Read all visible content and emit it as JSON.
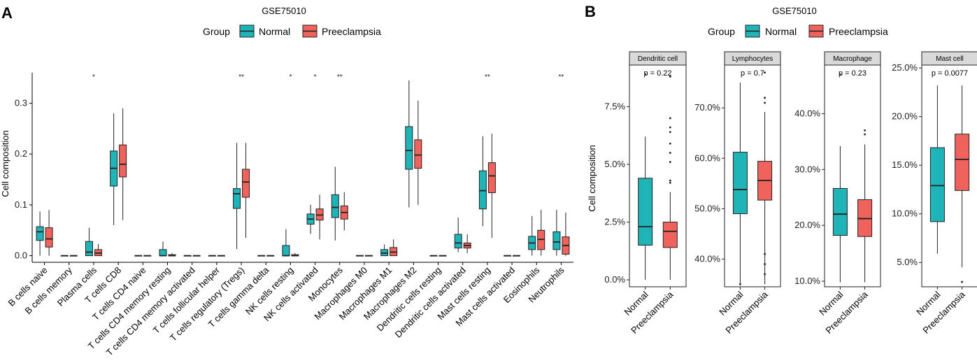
{
  "panel_a": {
    "letter": "A",
    "chart_data": {
      "type": "boxplot",
      "title": "GSE75010",
      "legend": {
        "title": "Group",
        "entries": [
          "Normal",
          "Preeclampsia"
        ]
      },
      "ylabel": "Cell composition",
      "ylim": [
        -0.013,
        0.36
      ],
      "yticks": [
        0.0,
        0.1,
        0.2,
        0.3
      ],
      "ytick_labels": [
        "0.0",
        "0.1",
        "0.2",
        "0.3"
      ],
      "categories": [
        "B cells naive",
        "B cells memory",
        "Plasma cells",
        "T cells CD8",
        "T cells CD4 naive",
        "T cells CD4 memory resting",
        "T cells CD4 memory activated",
        "T cells follicular helper",
        "T cells regulatory (Tregs)",
        "T cells gamma delta",
        "NK cells resting",
        "NK cells activated",
        "Monocytes",
        "Macrophages M0",
        "Macrophages M1",
        "Macrophages M2",
        "Dendritic cells resting",
        "Dendritic cells activated",
        "Mast cells resting",
        "Mast cells activated",
        "Eosinophils",
        "Neutrophils"
      ],
      "significance": [
        "",
        "",
        "*",
        "",
        "",
        "",
        "",
        "",
        "**",
        "",
        "*",
        "*",
        "**",
        "",
        "",
        "",
        "",
        "",
        "**",
        "",
        "",
        "**"
      ],
      "series": [
        {
          "name": "Normal",
          "color": "#1FB5B8",
          "boxes": [
            [
              0.0,
              0.03,
              0.047,
              0.057,
              0.087
            ],
            [
              0,
              0,
              0,
              0,
              0
            ],
            [
              0,
              0.0,
              0.007,
              0.028,
              0.055
            ],
            [
              0.06,
              0.137,
              0.172,
              0.206,
              0.28
            ],
            [
              0,
              0,
              0,
              0,
              0
            ],
            [
              0,
              0,
              0.0,
              0.012,
              0.028
            ],
            [
              0,
              0,
              0,
              0,
              0
            ],
            [
              0,
              0,
              0,
              0,
              0
            ],
            [
              0.013,
              0.093,
              0.122,
              0.132,
              0.222
            ],
            [
              0,
              0,
              0,
              0,
              0
            ],
            [
              0,
              0,
              0.0,
              0.02,
              0.052
            ],
            [
              0.043,
              0.062,
              0.072,
              0.082,
              0.1
            ],
            [
              0.03,
              0.075,
              0.095,
              0.12,
              0.175
            ],
            [
              0,
              0,
              0,
              0,
              0
            ],
            [
              0,
              0,
              0.005,
              0.012,
              0.022
            ],
            [
              0.095,
              0.17,
              0.207,
              0.254,
              0.345
            ],
            [
              0,
              0,
              0,
              0,
              0
            ],
            [
              0.007,
              0.015,
              0.025,
              0.042,
              0.075
            ],
            [
              0.058,
              0.092,
              0.128,
              0.167,
              0.235
            ],
            [
              0,
              0,
              0,
              0,
              0
            ],
            [
              0.0,
              0.012,
              0.025,
              0.038,
              0.078
            ],
            [
              0.0,
              0.012,
              0.027,
              0.047,
              0.09
            ]
          ]
        },
        {
          "name": "Preeclampsia",
          "color": "#F0635C",
          "boxes": [
            [
              0.0,
              0.017,
              0.033,
              0.055,
              0.09
            ],
            [
              0,
              0,
              0,
              0,
              0
            ],
            [
              0,
              0,
              0.005,
              0.012,
              0.023
            ],
            [
              0.07,
              0.155,
              0.18,
              0.218,
              0.29
            ],
            [
              0,
              0,
              0,
              0,
              0
            ],
            [
              0,
              0,
              0,
              0.002,
              0.005
            ],
            [
              0,
              0,
              0,
              0,
              0
            ],
            [
              0,
              0,
              0,
              0,
              0
            ],
            [
              0.035,
              0.115,
              0.145,
              0.17,
              0.222
            ],
            [
              0,
              0,
              0,
              0,
              0
            ],
            [
              0,
              0,
              0,
              0.002,
              0.005
            ],
            [
              0.032,
              0.07,
              0.08,
              0.092,
              0.12
            ],
            [
              0.05,
              0.072,
              0.085,
              0.098,
              0.125
            ],
            [
              0,
              0,
              0,
              0,
              0
            ],
            [
              0,
              0,
              0.007,
              0.016,
              0.032
            ],
            [
              0.1,
              0.172,
              0.198,
              0.228,
              0.305
            ],
            [
              0,
              0,
              0,
              0,
              0
            ],
            [
              0.005,
              0.015,
              0.02,
              0.025,
              0.042
            ],
            [
              0.035,
              0.124,
              0.157,
              0.183,
              0.24
            ],
            [
              0,
              0,
              0,
              0,
              0
            ],
            [
              0.0,
              0.012,
              0.032,
              0.05,
              0.09
            ],
            [
              0.0,
              0.003,
              0.02,
              0.037,
              0.085
            ]
          ]
        }
      ]
    }
  },
  "panel_b": {
    "letter": "B",
    "chart_data": {
      "type": "boxplot",
      "title": "GSE75010",
      "legend": {
        "title": "Group",
        "entries": [
          "Normal",
          "Preeclampsia"
        ]
      },
      "ylabel": "Cell composition",
      "xcategories": [
        "Normal",
        "Preeclampsia"
      ],
      "facets": [
        {
          "label": "Dendritic cell",
          "pval": "p = 0.22",
          "ylim": [
            -0.003,
            0.093
          ],
          "yticks": [
            0,
            0.025,
            0.05,
            0.075
          ],
          "ytick_labels": [
            "0.0%",
            "2.5%",
            "5.0%",
            "7.5%"
          ],
          "boxes": [
            [
              0.0,
              0.015,
              0.023,
              0.044,
              0.062
            ],
            [
              0.0,
              0.014,
              0.021,
              0.025,
              0.038
            ]
          ],
          "outliers": [
            [
              0.089
            ],
            [
              0.043,
              0.042,
              0.051,
              0.055,
              0.059,
              0.064,
              0.066,
              0.07,
              0.088
            ]
          ]
        },
        {
          "label": "Lymphocytes",
          "pval": "p = 0.7",
          "ylim": [
            0.345,
            0.785
          ],
          "yticks": [
            0.4,
            0.5,
            0.6,
            0.7
          ],
          "ytick_labels": [
            "40.0%",
            "50.0%",
            "60.0%",
            "70.0%"
          ],
          "boxes": [
            [
              0.35,
              0.49,
              0.538,
              0.612,
              0.75
            ],
            [
              0.35,
              0.517,
              0.556,
              0.594,
              0.692
            ]
          ],
          "outliers": [
            [
              0.35
            ],
            [
              0.37,
              0.39,
              0.41,
              0.71,
              0.72,
              0.77
            ]
          ]
        },
        {
          "label": "Macrophage",
          "pval": "p = 0.23",
          "ylim": [
            0.09,
            0.487
          ],
          "yticks": [
            0.1,
            0.2,
            0.3,
            0.4
          ],
          "ytick_labels": [
            "10.0%",
            "20.0%",
            "30.0%",
            "40.0%"
          ],
          "boxes": [
            [
              0.098,
              0.182,
              0.22,
              0.266,
              0.342
            ],
            [
              0.098,
              0.18,
              0.212,
              0.246,
              0.345
            ]
          ],
          "outliers": [
            [
              0.47
            ],
            [
              0.363,
              0.37
            ]
          ]
        },
        {
          "label": "Mast cell",
          "pval": "p = 0.0077",
          "ylim": [
            0.025,
            0.253
          ],
          "yticks": [
            0.05,
            0.1,
            0.15,
            0.2,
            0.25
          ],
          "ytick_labels": [
            "5.0%",
            "10.0%",
            "15.0%",
            "20.0%",
            "25.0%"
          ],
          "boxes": [
            [
              0.059,
              0.092,
              0.129,
              0.168,
              0.232
            ],
            [
              0.045,
              0.124,
              0.156,
              0.182,
              0.232
            ]
          ],
          "outliers": [
            [],
            [
              0.03
            ]
          ]
        }
      ],
      "colors": [
        "#1FB5B8",
        "#F0635C"
      ]
    }
  }
}
